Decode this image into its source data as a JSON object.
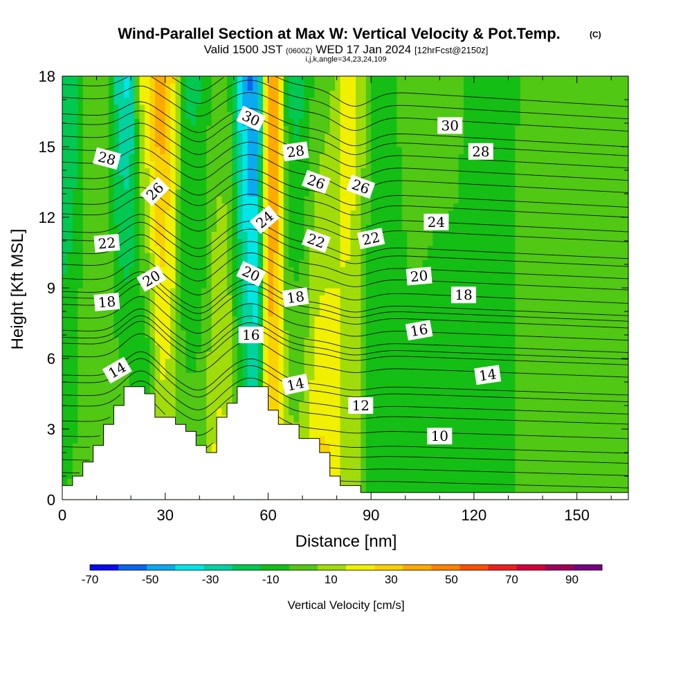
{
  "title": {
    "main": "Wind-Parallel Section at Max W: Vertical Velocity & Pot.Temp.",
    "copyright": "(C)",
    "valid_prefix": "Valid 1500 JST",
    "utc": "(0600Z)",
    "valid_date": "WED 17 Jan 2024",
    "forecast": "[12hrFcst@2150z]",
    "indices": "i,j,k,angle=34,23,24,109"
  },
  "chart_data": {
    "type": "heatmap",
    "xlabel": "Distance [nm]",
    "ylabel": "Height [Kft MSL]",
    "xlim": [
      0,
      165
    ],
    "ylim": [
      0,
      18
    ],
    "x_ticks": [
      0,
      30,
      60,
      90,
      120,
      150
    ],
    "y_ticks": [
      0,
      3,
      6,
      9,
      12,
      15,
      18
    ],
    "x_tick_labels": [
      "0",
      "30",
      "60",
      "90",
      "120",
      "150"
    ],
    "y_tick_labels": [
      "0",
      "3",
      "6",
      "9",
      "12",
      "15",
      "18"
    ],
    "colorbar": {
      "label": "Vertical Velocity [cm/s]",
      "min": -70,
      "max": 100,
      "step": 10,
      "tick_labels": [
        "-70",
        "-50",
        "-30",
        "-10",
        "10",
        "30",
        "50",
        "70",
        "90"
      ],
      "tick_values": [
        -70,
        -50,
        -30,
        -10,
        10,
        30,
        50,
        70,
        90
      ],
      "colors": [
        "#0a0af0",
        "#0a64f0",
        "#0aaaf0",
        "#00e6e6",
        "#00d2a0",
        "#00c850",
        "#14be14",
        "#50c814",
        "#a0dc0a",
        "#f0f000",
        "#fad200",
        "#ffaa00",
        "#ff8200",
        "#ff5000",
        "#f01e1e",
        "#d2003c",
        "#a0005a",
        "#780082"
      ]
    },
    "vertical_velocity_bands": [
      {
        "x": 2,
        "x_halfwidth": 3,
        "w_low": 0,
        "w_high": -20
      },
      {
        "x": 10,
        "x_halfwidth": 5,
        "w_low": 10,
        "w_high": 5
      },
      {
        "x": 18,
        "x_halfwidth": 3,
        "w_low": 15,
        "w_high": -35
      },
      {
        "x": 25,
        "x_halfwidth": 3,
        "w_low": -25,
        "w_high": 25
      },
      {
        "x": 28,
        "x_halfwidth": 2.5,
        "w_low": 15,
        "w_high": 60
      },
      {
        "x": 31,
        "x_halfwidth": 2.5,
        "w_low": 10,
        "w_high": 35
      },
      {
        "x": 38,
        "x_halfwidth": 4,
        "w_low": 5,
        "w_high": -12
      },
      {
        "x": 47,
        "x_halfwidth": 4,
        "w_low": 25,
        "w_high": 5
      },
      {
        "x": 53,
        "x_halfwidth": 3,
        "w_low": 0,
        "w_high": -45
      },
      {
        "x": 56,
        "x_halfwidth": 2.5,
        "w_low": -25,
        "w_high": -60
      },
      {
        "x": 61,
        "x_halfwidth": 3,
        "w_low": 35,
        "w_high": 55
      },
      {
        "x": 68,
        "x_halfwidth": 4,
        "w_low": 15,
        "w_high": -15
      },
      {
        "x": 76,
        "x_halfwidth": 4,
        "w_low": 35,
        "w_high": 5
      },
      {
        "x": 84,
        "x_halfwidth": 4,
        "w_low": 15,
        "w_high": 25
      },
      {
        "x": 93,
        "x_halfwidth": 5,
        "w_low": -10,
        "w_high": -5
      },
      {
        "x": 102,
        "x_halfwidth": 5,
        "w_low": -5,
        "w_high": 5
      },
      {
        "x": 112,
        "x_halfwidth": 5,
        "w_low": -10,
        "w_high": 5
      },
      {
        "x": 125,
        "x_halfwidth": 6,
        "w_low": -5,
        "w_high": -10
      },
      {
        "x": 140,
        "x_halfwidth": 6,
        "w_low": 5,
        "w_high": 8
      },
      {
        "x": 155,
        "x_halfwidth": 6,
        "w_low": 5,
        "w_high": 8
      }
    ],
    "terrain": [
      [
        0,
        0.6
      ],
      [
        3,
        0.6
      ],
      [
        3,
        1.0
      ],
      [
        6,
        1.0
      ],
      [
        6,
        1.6
      ],
      [
        9,
        1.6
      ],
      [
        9,
        2.3
      ],
      [
        12,
        2.3
      ],
      [
        12,
        3.2
      ],
      [
        15,
        3.2
      ],
      [
        15,
        4.0
      ],
      [
        18,
        4.0
      ],
      [
        18,
        4.8
      ],
      [
        24,
        4.8
      ],
      [
        24,
        4.5
      ],
      [
        27,
        4.5
      ],
      [
        27,
        3.5
      ],
      [
        33,
        3.5
      ],
      [
        33,
        3.2
      ],
      [
        36,
        3.2
      ],
      [
        36,
        2.9
      ],
      [
        39,
        2.9
      ],
      [
        39,
        2.3
      ],
      [
        42,
        2.3
      ],
      [
        42,
        2.0
      ],
      [
        45,
        2.0
      ],
      [
        45,
        3.5
      ],
      [
        48,
        3.5
      ],
      [
        48,
        4.1
      ],
      [
        51,
        4.1
      ],
      [
        51,
        4.8
      ],
      [
        60,
        4.8
      ],
      [
        60,
        3.8
      ],
      [
        63,
        3.8
      ],
      [
        63,
        3.2
      ],
      [
        69,
        3.2
      ],
      [
        69,
        2.6
      ],
      [
        75,
        2.6
      ],
      [
        75,
        2.0
      ],
      [
        78,
        2.0
      ],
      [
        78,
        1.0
      ],
      [
        81,
        1.0
      ],
      [
        81,
        0.6
      ],
      [
        87,
        0.6
      ],
      [
        87,
        0.3
      ],
      [
        165,
        0.3
      ]
    ],
    "theta_contours": [
      {
        "label": "10",
        "base_kft": 2.7
      },
      {
        "label": "12",
        "base_kft": 4.0
      },
      {
        "label": "14",
        "base_kft": 5.3
      },
      {
        "label": "16",
        "base_kft": 6.9
      },
      {
        "label": "18",
        "base_kft": 8.6
      },
      {
        "label": "20",
        "base_kft": 10.0
      },
      {
        "label": "22",
        "base_kft": 11.4
      },
      {
        "label": "24",
        "base_kft": 12.6
      },
      {
        "label": "26",
        "base_kft": 13.7
      },
      {
        "label": "28",
        "base_kft": 14.9
      },
      {
        "label": "30",
        "base_kft": 16.4
      }
    ],
    "theta_contour_labels": [
      {
        "text": "28",
        "x": 13,
        "y": 14.5,
        "angle": 15
      },
      {
        "text": "22",
        "x": 13,
        "y": 10.9,
        "angle": -5
      },
      {
        "text": "18",
        "x": 13,
        "y": 8.4,
        "angle": -5
      },
      {
        "text": "14",
        "x": 16,
        "y": 5.5,
        "angle": -30
      },
      {
        "text": "26",
        "x": 27,
        "y": 13.1,
        "angle": -45
      },
      {
        "text": "20",
        "x": 26,
        "y": 9.4,
        "angle": -30
      },
      {
        "text": "30",
        "x": 55,
        "y": 16.2,
        "angle": 25
      },
      {
        "text": "24",
        "x": 59,
        "y": 11.9,
        "angle": -40
      },
      {
        "text": "20",
        "x": 55,
        "y": 9.6,
        "angle": 25
      },
      {
        "text": "16",
        "x": 55,
        "y": 7.0,
        "angle": 0
      },
      {
        "text": "28",
        "x": 68,
        "y": 14.8,
        "angle": -8
      },
      {
        "text": "26",
        "x": 74,
        "y": 13.5,
        "angle": 20
      },
      {
        "text": "22",
        "x": 74,
        "y": 11.0,
        "angle": 20
      },
      {
        "text": "18",
        "x": 68,
        "y": 8.6,
        "angle": -8
      },
      {
        "text": "14",
        "x": 68,
        "y": 4.9,
        "angle": -12
      },
      {
        "text": "26",
        "x": 87,
        "y": 13.3,
        "angle": 20
      },
      {
        "text": "22",
        "x": 90,
        "y": 11.1,
        "angle": -12
      },
      {
        "text": "30",
        "x": 113,
        "y": 15.9,
        "angle": 0
      },
      {
        "text": "28",
        "x": 122,
        "y": 14.8,
        "angle": 0
      },
      {
        "text": "24",
        "x": 109,
        "y": 11.8,
        "angle": 0
      },
      {
        "text": "20",
        "x": 104,
        "y": 9.5,
        "angle": -5
      },
      {
        "text": "18",
        "x": 117,
        "y": 8.7,
        "angle": 0
      },
      {
        "text": "16",
        "x": 104,
        "y": 7.2,
        "angle": -10
      },
      {
        "text": "14",
        "x": 124,
        "y": 5.3,
        "angle": -8
      },
      {
        "text": "12",
        "x": 87,
        "y": 4.0,
        "angle": 0
      },
      {
        "text": "10",
        "x": 110,
        "y": 2.7,
        "angle": 0
      }
    ]
  }
}
